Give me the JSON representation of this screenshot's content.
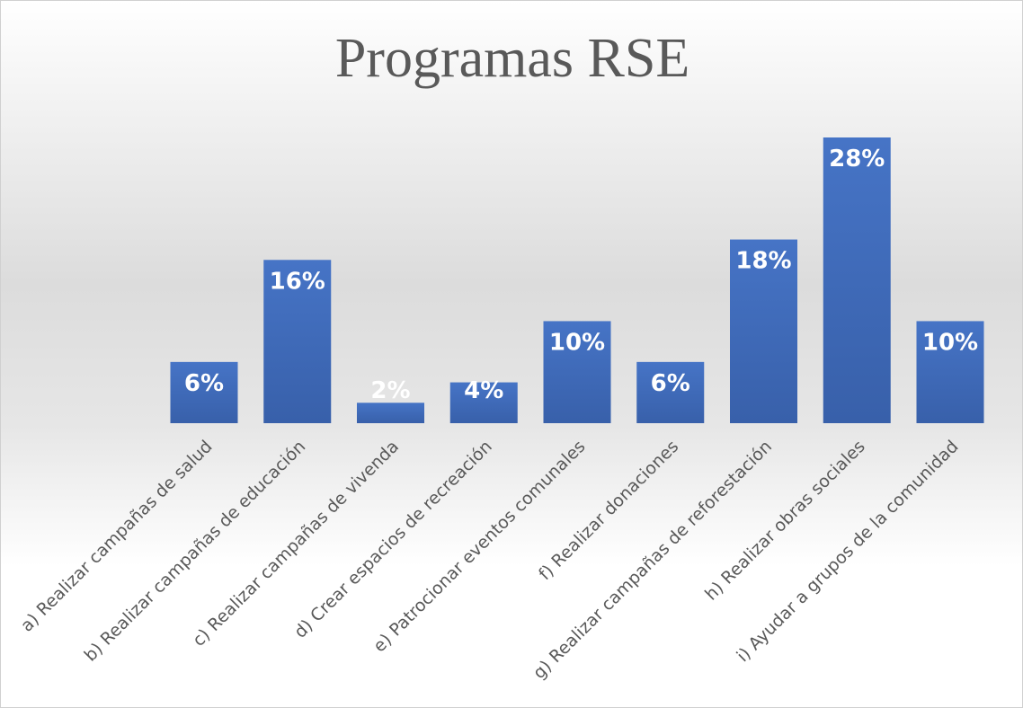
{
  "chart_data": {
    "type": "bar",
    "title": "Programas RSE",
    "categories": [
      "a) Realizar campañas de salud",
      "b) Realizar campañas de educación",
      "c) Realizar campañas de vivenda",
      "d) Crear espacios de recreación",
      "e) Patrocionar eventos comunales",
      "f) Realizar donaciones",
      "g) Realizar campañas de reforestación",
      "h) Realizar obras sociales",
      "i) Ayudar a grupos de la comunidad"
    ],
    "values": [
      6,
      16,
      2,
      4,
      10,
      6,
      18,
      28,
      10
    ],
    "value_labels": [
      "6%",
      "16%",
      "2%",
      "4%",
      "10%",
      "6%",
      "18%",
      "28%",
      "10%"
    ],
    "color": "#4472c4"
  }
}
